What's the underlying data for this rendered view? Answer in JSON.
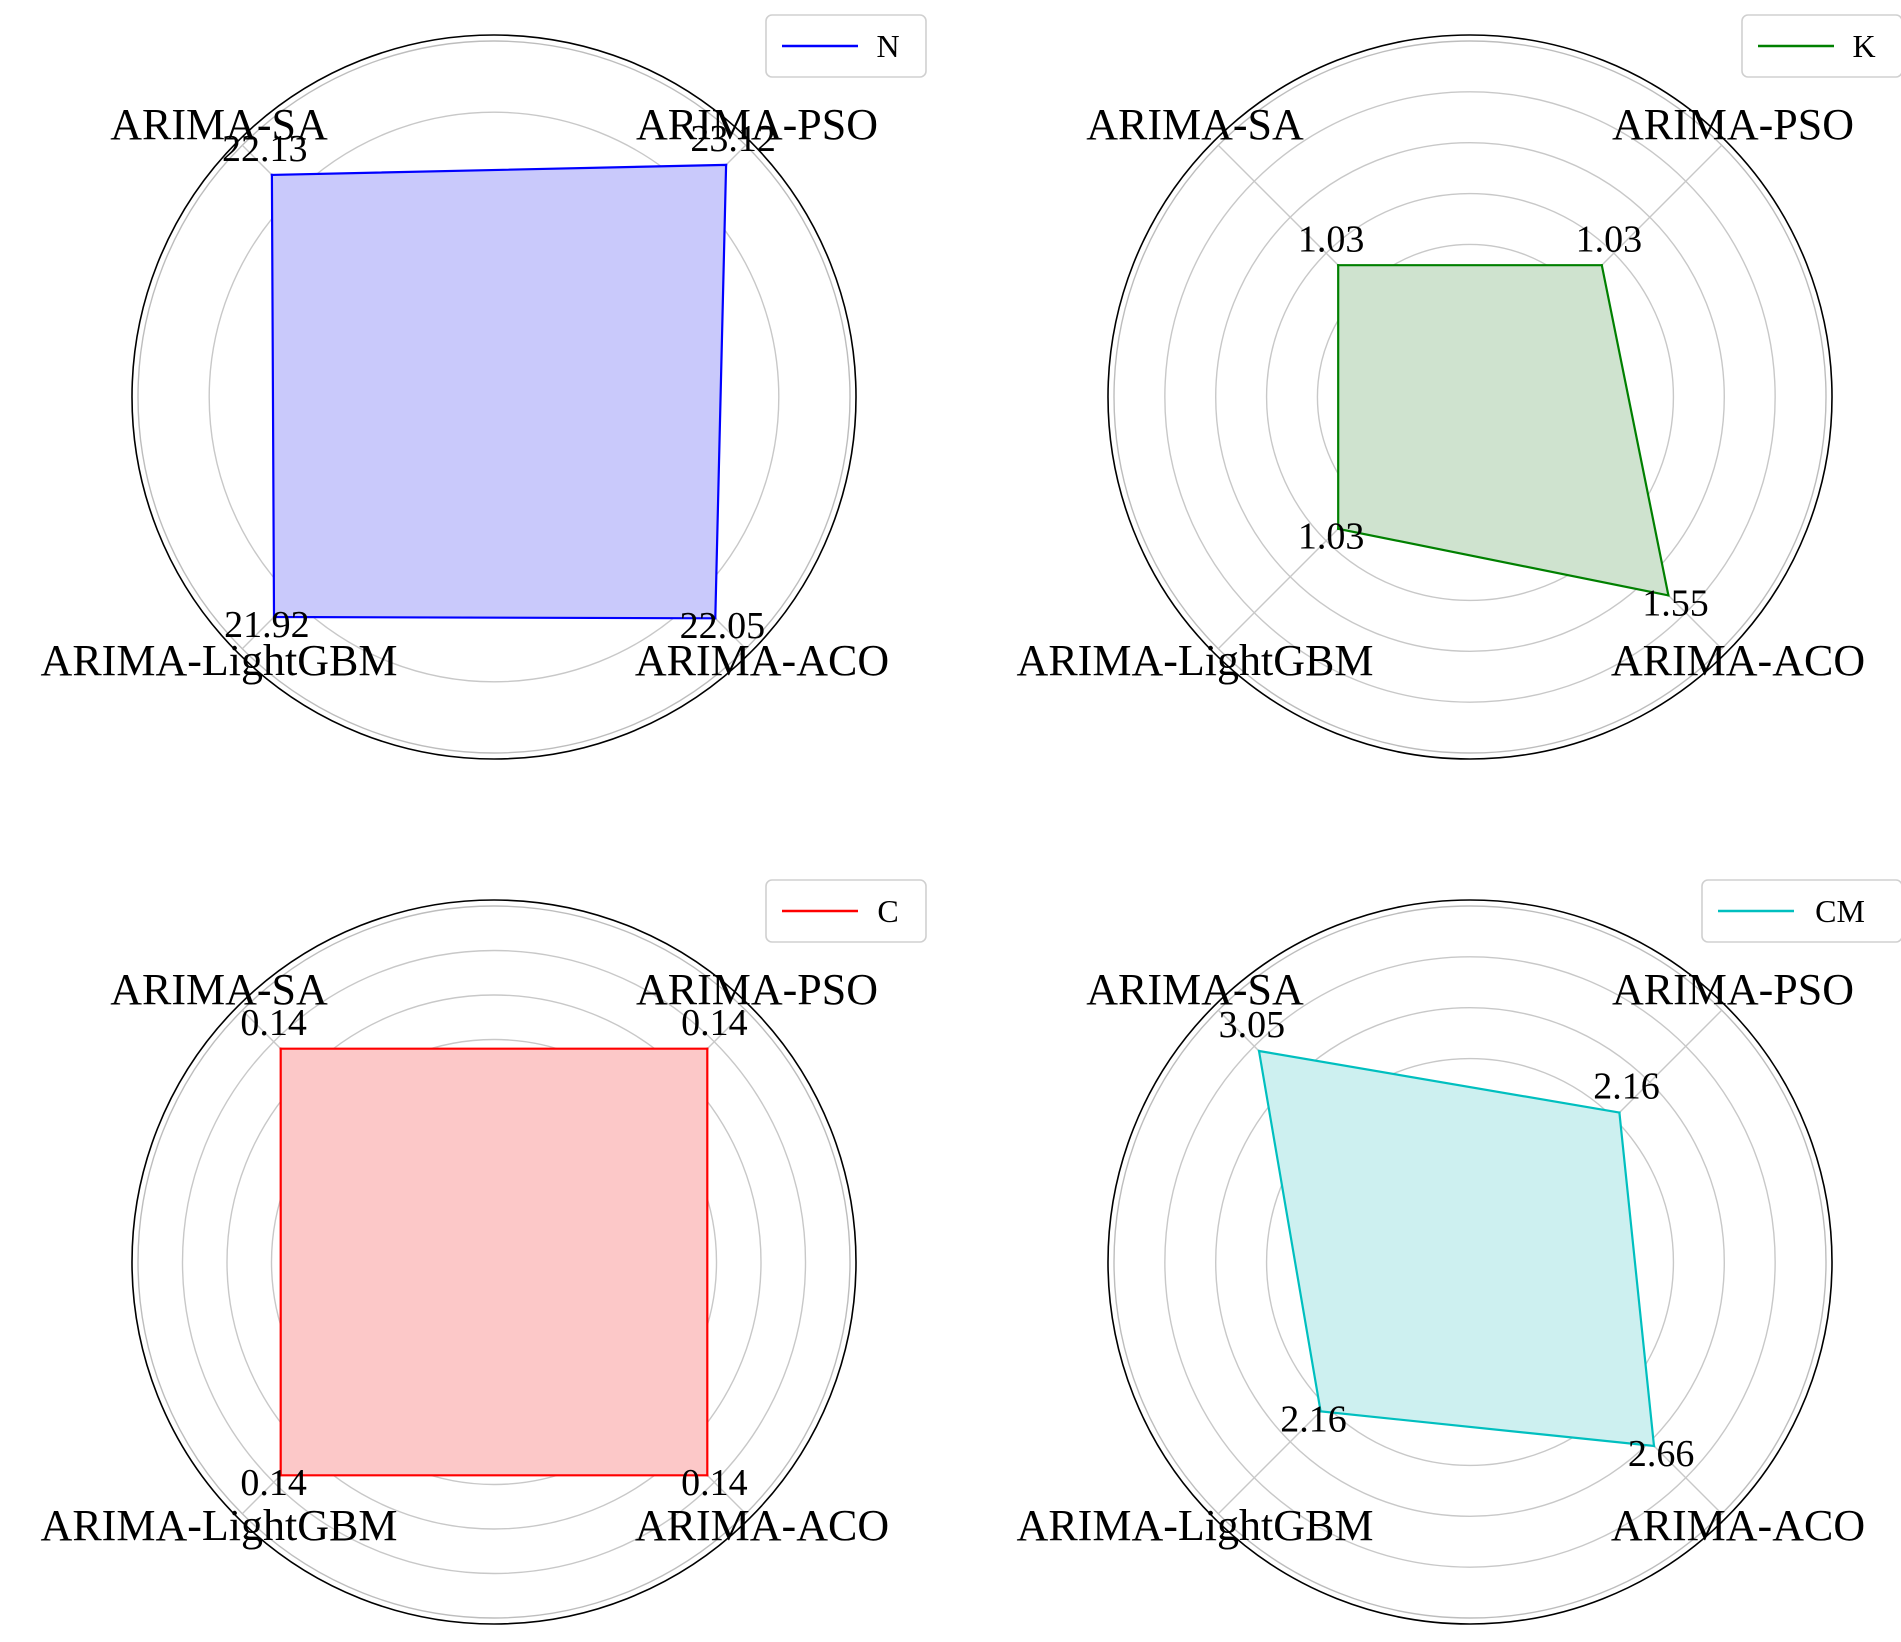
{
  "chart_data": [
    {
      "type": "radar",
      "categories": [
        "ARIMA-PSO",
        "ARIMA-SA",
        "ARIMA-LightGBM",
        "ARIMA-ACO"
      ],
      "series": [
        {
          "name": "N",
          "values": [
            23.12,
            22.13,
            21.92,
            22.05
          ]
        }
      ],
      "value_labels": [
        "23.12",
        "22.13",
        "21.92",
        "22.05"
      ],
      "rmax": 25.5,
      "grid_rings": 5,
      "color": "#0000ff",
      "fill": "#c9c9fb",
      "legend_placement": "top-right"
    },
    {
      "type": "radar",
      "categories": [
        "ARIMA-PSO",
        "ARIMA-SA",
        "ARIMA-LightGBM",
        "ARIMA-ACO"
      ],
      "series": [
        {
          "name": "K",
          "values": [
            1.03,
            1.03,
            1.03,
            1.55
          ]
        }
      ],
      "value_labels": [
        "1.03",
        "1.03",
        "1.03",
        "1.55"
      ],
      "rmax": 2.0,
      "grid_rings": 7,
      "color": "#008000",
      "fill": "#cfe3cf",
      "legend_placement": "top-right"
    },
    {
      "type": "radar",
      "categories": [
        "ARIMA-PSO",
        "ARIMA-SA",
        "ARIMA-LightGBM",
        "ARIMA-ACO"
      ],
      "series": [
        {
          "name": "C",
          "values": [
            0.14,
            0.14,
            0.14,
            0.14
          ]
        }
      ],
      "value_labels": [
        "0.14",
        "0.14",
        "0.14",
        "0.14"
      ],
      "rmax": 0.168,
      "grid_rings": 8,
      "color": "#ff0000",
      "fill": "#fcc8c8",
      "legend_placement": "top-right"
    },
    {
      "type": "radar",
      "categories": [
        "ARIMA-PSO",
        "ARIMA-SA",
        "ARIMA-LightGBM",
        "ARIMA-ACO"
      ],
      "series": [
        {
          "name": "CM",
          "values": [
            2.16,
            3.05,
            2.16,
            2.66
          ]
        }
      ],
      "value_labels": [
        "2.16",
        "3.05",
        "2.16",
        "2.66"
      ],
      "rmax": 3.7,
      "grid_rings": 7,
      "color": "#00bfbf",
      "fill": "#cdf0f0",
      "legend_placement": "top-right"
    }
  ]
}
